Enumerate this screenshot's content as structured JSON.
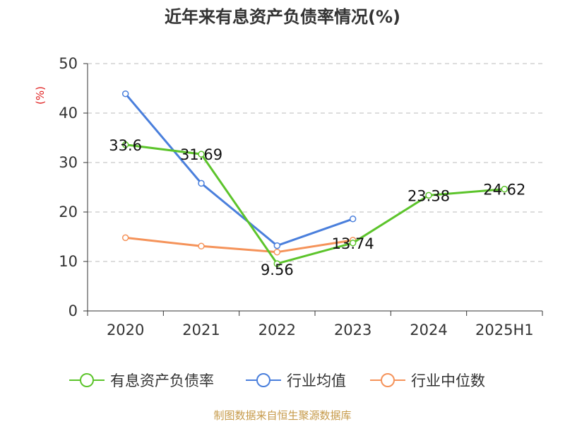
{
  "title": "近年来有息资产负债率情况(%)",
  "unit_label": "(%)",
  "source": "制图数据来自恒生聚源数据库",
  "colors": {
    "series1": "#5cc42b",
    "series2": "#4a7fdc",
    "series3": "#f5935a",
    "grid": "#bbbbbb",
    "axis": "#333333",
    "unit": "#e02020",
    "source": "#c69a4a"
  },
  "chart_data": {
    "type": "line",
    "categories": [
      "2020",
      "2021",
      "2022",
      "2023",
      "2024",
      "2025H1"
    ],
    "ylim": [
      0,
      50
    ],
    "yticks": [
      0,
      10,
      20,
      30,
      40,
      50
    ],
    "grid": true,
    "legend_position": "bottom",
    "series": [
      {
        "name": "有息资产负债率",
        "values": [
          33.6,
          31.69,
          9.56,
          13.74,
          23.38,
          24.62
        ],
        "labels": [
          "33.6",
          "31.69",
          "9.56",
          "13.74",
          "23.38",
          "24.62"
        ]
      },
      {
        "name": "行业均值",
        "values": [
          43.9,
          25.8,
          13.2,
          18.6,
          null,
          null
        ]
      },
      {
        "name": "行业中位数",
        "values": [
          14.8,
          13.1,
          11.9,
          14.3,
          null,
          null
        ]
      }
    ]
  }
}
